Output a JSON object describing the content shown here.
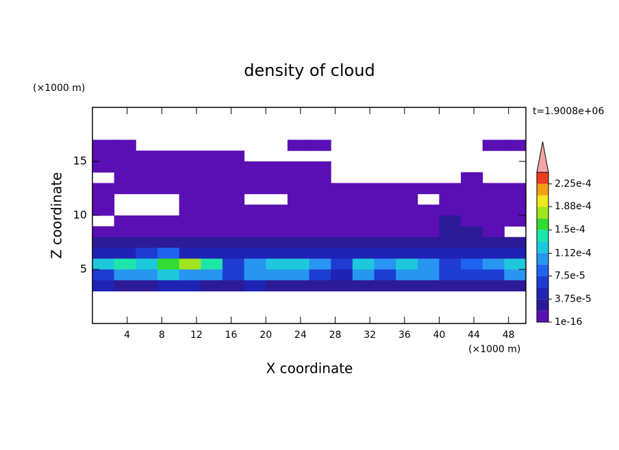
{
  "chart_data": {
    "type": "contour",
    "title": "density of cloud",
    "x_label": "X coordinate",
    "y_label": "Z coordinate",
    "x_unit": "(×1000 m)",
    "y_unit": "(×1000 m)",
    "time_label": "t=1.9008e+06",
    "xlim": [
      0,
      50
    ],
    "ylim": [
      0,
      20
    ],
    "xticks": [
      4,
      8,
      12,
      16,
      20,
      24,
      28,
      32,
      36,
      40,
      44,
      48
    ],
    "yticks": [
      5,
      10,
      15
    ],
    "levels": [
      1e-16,
      1.875e-05,
      3.75e-05,
      5.625e-05,
      7.5e-05,
      9.375e-05,
      0.0001125,
      0.00013125,
      0.00015,
      0.00016875,
      0.0001875,
      0.00020625,
      0.000225,
      0.00024375
    ],
    "colors": [
      "#5a0fb4",
      "#2c1a96",
      "#1e23b4",
      "#1e3cd2",
      "#1e64f0",
      "#2896f0",
      "#1ec8dc",
      "#1ee6aa",
      "#32dc32",
      "#a0e61e",
      "#f0e61e",
      "#f0a014",
      "#f03c1e"
    ],
    "over_color": "#f4a6a6",
    "colorbar_ticks": [
      1e-16,
      {
        "value": 3.75e-05,
        "label": "3.75e-5"
      },
      {
        "value": 7.5e-05,
        "label": "7.5e-5"
      },
      {
        "value": 0.000112,
        "label": "1.12e-4"
      },
      {
        "value": 0.00015,
        "label": "1.5e-4"
      },
      {
        "value": 0.000188,
        "label": "1.88e-4"
      },
      {
        "value": 0.000225,
        "label": "2.25e-4"
      }
    ],
    "x_edges": [
      0,
      2.5,
      5,
      7.5,
      10,
      12.5,
      15,
      17.5,
      20,
      22.5,
      25,
      27.5,
      30,
      32.5,
      35,
      37.5,
      40,
      42.5,
      45,
      47.5,
      50
    ],
    "z_edges": [
      17,
      16,
      15,
      14,
      13,
      12,
      11,
      10,
      9,
      8,
      7,
      6,
      5,
      4,
      3
    ],
    "values": [
      [
        5e-06,
        5e-06,
        null,
        null,
        null,
        null,
        null,
        null,
        null,
        5e-06,
        5e-06,
        null,
        null,
        null,
        null,
        null,
        null,
        null,
        5e-06,
        5e-06
      ],
      [
        5e-06,
        5e-06,
        5e-06,
        5e-06,
        5e-06,
        5e-06,
        5e-06,
        null,
        null,
        null,
        null,
        null,
        null,
        null,
        null,
        null,
        null,
        null,
        null,
        null
      ],
      [
        5e-06,
        5e-06,
        5e-06,
        5e-06,
        5e-06,
        5e-06,
        5e-06,
        5e-06,
        5e-06,
        5e-06,
        5e-06,
        null,
        null,
        null,
        null,
        null,
        null,
        null,
        null,
        null
      ],
      [
        null,
        5e-06,
        5e-06,
        5e-06,
        5e-06,
        5e-06,
        5e-06,
        5e-06,
        5e-06,
        5e-06,
        5e-06,
        null,
        null,
        null,
        null,
        null,
        null,
        5e-06,
        null,
        null
      ],
      [
        5e-06,
        5e-06,
        5e-06,
        5e-06,
        5e-06,
        5e-06,
        5e-06,
        5e-06,
        5e-06,
        5e-06,
        5e-06,
        5e-06,
        5e-06,
        5e-06,
        5e-06,
        5e-06,
        5e-06,
        5e-06,
        5e-06,
        5e-06
      ],
      [
        5e-06,
        null,
        null,
        null,
        5e-06,
        5e-06,
        5e-06,
        null,
        null,
        5e-06,
        5e-06,
        5e-06,
        5e-06,
        5e-06,
        5e-06,
        null,
        5e-06,
        5e-06,
        5e-06,
        5e-06
      ],
      [
        5e-06,
        null,
        null,
        null,
        5e-06,
        5e-06,
        5e-06,
        5e-06,
        5e-06,
        5e-06,
        5e-06,
        5e-06,
        5e-06,
        5e-06,
        5e-06,
        5e-06,
        5e-06,
        5e-06,
        5e-06,
        5e-06
      ],
      [
        null,
        5e-06,
        5e-06,
        5e-06,
        5e-06,
        5e-06,
        5e-06,
        5e-06,
        5e-06,
        5e-06,
        5e-06,
        5e-06,
        5e-06,
        5e-06,
        5e-06,
        5e-06,
        2.5e-05,
        5e-06,
        5e-06,
        5e-06
      ],
      [
        5e-06,
        5e-06,
        5e-06,
        5e-06,
        5e-06,
        5e-06,
        5e-06,
        5e-06,
        5e-06,
        5e-06,
        5e-06,
        5e-06,
        5e-06,
        5e-06,
        5e-06,
        5e-06,
        2.5e-05,
        2.5e-05,
        5e-06,
        null
      ],
      [
        2.5e-05,
        2.5e-05,
        2.5e-05,
        2.5e-05,
        2.5e-05,
        2.5e-05,
        2.5e-05,
        2.5e-05,
        2.5e-05,
        2.5e-05,
        2.5e-05,
        2.5e-05,
        2.5e-05,
        2.5e-05,
        2.5e-05,
        2.5e-05,
        2.5e-05,
        2.5e-05,
        2.5e-05,
        2.5e-05
      ],
      [
        4.5e-05,
        4.5e-05,
        6.5e-05,
        8.5e-05,
        4.5e-05,
        4.5e-05,
        4.5e-05,
        4.5e-05,
        4.5e-05,
        4.5e-05,
        4.5e-05,
        4.5e-05,
        4.5e-05,
        4.5e-05,
        4.5e-05,
        4.5e-05,
        4.5e-05,
        4.5e-05,
        4.5e-05,
        4.5e-05
      ],
      [
        0.00012,
        0.00014,
        0.00012,
        0.00016,
        0.00018,
        0.00014,
        6.5e-05,
        0.0001,
        0.00012,
        0.00012,
        0.0001,
        6.5e-05,
        0.00012,
        0.0001,
        0.00012,
        0.0001,
        6.5e-05,
        8.5e-05,
        0.0001,
        0.00012
      ],
      [
        6.5e-05,
        0.0001,
        0.0001,
        0.00012,
        0.0001,
        0.0001,
        6.5e-05,
        0.0001,
        0.0001,
        0.0001,
        6.5e-05,
        4.5e-05,
        0.0001,
        6.5e-05,
        0.0001,
        0.0001,
        6.5e-05,
        6.5e-05,
        6.5e-05,
        0.0001
      ],
      [
        4.5e-05,
        2.5e-05,
        2.5e-05,
        4.5e-05,
        4.5e-05,
        2.5e-05,
        2.5e-05,
        4.5e-05,
        2.5e-05,
        2.5e-05,
        2.5e-05,
        2.5e-05,
        2.5e-05,
        2.5e-05,
        2.5e-05,
        2.5e-05,
        2.5e-05,
        2.5e-05,
        2.5e-05,
        2.5e-05
      ]
    ]
  }
}
